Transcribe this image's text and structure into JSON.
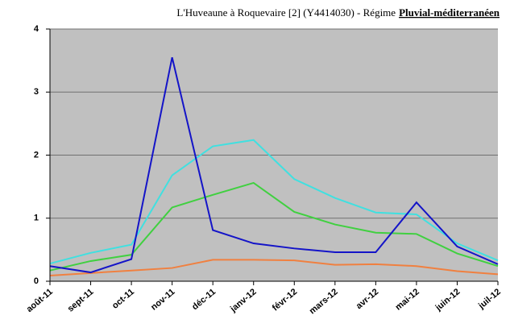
{
  "chart_data": {
    "type": "line",
    "title": "L'Huveaune à Roquevaire [2] (Y4414030) - Régime",
    "regime": "Pluvial-méditerranéen",
    "categories": [
      "août-11",
      "sept-11",
      "oct-11",
      "nov-11",
      "déc-11",
      "janv-12",
      "févr-12",
      "mars-12",
      "avr-12",
      "mai-12",
      "juin-12",
      "juil-12"
    ],
    "series": [
      {
        "color": "#f08040",
        "values": [
          0.09,
          0.13,
          0.17,
          0.21,
          0.34,
          0.34,
          0.33,
          0.26,
          0.27,
          0.24,
          0.16,
          0.11
        ]
      },
      {
        "color": "#40d040",
        "values": [
          0.17,
          0.32,
          0.42,
          1.17,
          1.37,
          1.56,
          1.1,
          0.9,
          0.77,
          0.75,
          0.44,
          0.24
        ]
      },
      {
        "color": "#40e0e0",
        "values": [
          0.28,
          0.45,
          0.58,
          1.68,
          2.14,
          2.24,
          1.62,
          1.32,
          1.09,
          1.06,
          0.6,
          0.33
        ]
      },
      {
        "color": "#1414c8",
        "values": [
          0.24,
          0.14,
          0.35,
          3.55,
          0.81,
          0.6,
          0.52,
          0.46,
          0.46,
          1.25,
          0.55,
          0.27
        ]
      }
    ],
    "ylim": [
      0,
      4
    ],
    "yticks": [
      0,
      1,
      2,
      3,
      4
    ],
    "grid": true
  }
}
